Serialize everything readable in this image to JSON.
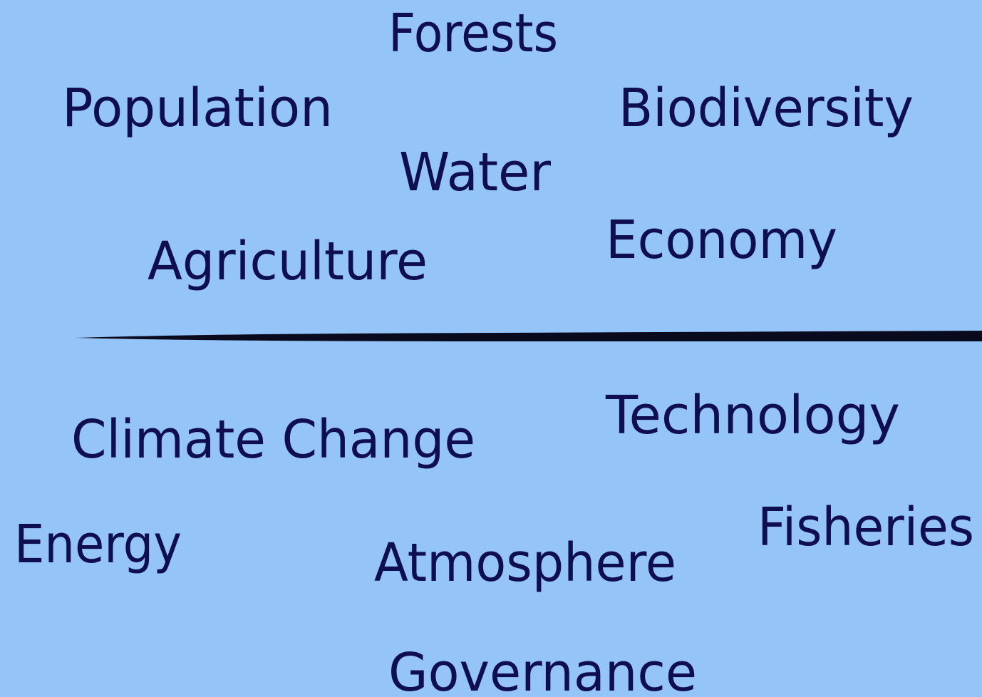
{
  "top_words": [
    "Forests",
    "Population",
    "Biodiversity",
    "Water",
    "Agriculture",
    "Economy"
  ],
  "bottom_words": [
    "Climate Change",
    "Technology",
    "Energy",
    "Atmosphere",
    "Fisheries",
    "Governance"
  ]
}
